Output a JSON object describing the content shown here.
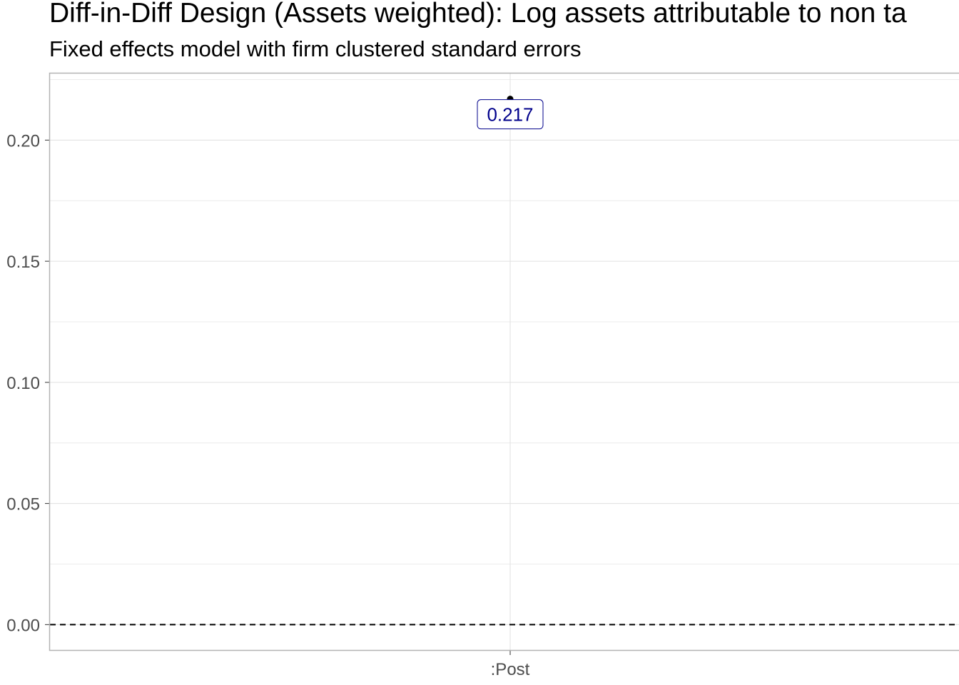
{
  "chart_data": {
    "type": "scatter",
    "title": "Diff-in-Diff Design (Assets weighted): Log assets attributable to non ta",
    "subtitle": "Fixed effects model with firm clustered standard errors",
    "xlabel": "",
    "ylabel": "",
    "categories": [
      ":Post"
    ],
    "values": [
      0.217
    ],
    "data_labels": [
      "0.217"
    ],
    "ylim": [
      -0.0105,
      0.2275
    ],
    "y_ticks": [
      0.0,
      0.05,
      0.1,
      0.15,
      0.2
    ],
    "y_tick_labels": [
      "0.00",
      "0.05",
      "0.10",
      "0.15",
      "0.20"
    ],
    "reference_line": 0.0,
    "grid": true,
    "legend": "none",
    "colors": {
      "point": "#000000",
      "label_text": "#00008b",
      "grid_major": "#e0e0e0",
      "grid_minor": "#ececec",
      "panel_border": "#b3b3b3",
      "reference_line": "#000000"
    }
  }
}
